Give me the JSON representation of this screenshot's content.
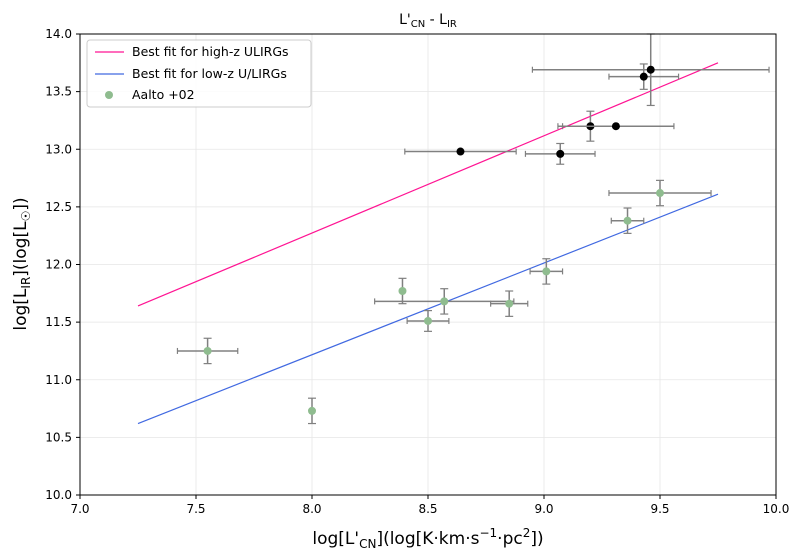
{
  "chart_data": {
    "type": "scatter",
    "title": "L'CN - LIR",
    "title_main": "L'",
    "title_sub1": "CN",
    "title_mid": " - L",
    "title_sub2": "IR",
    "xlabel": "log[L'CN](log[K·km·s−1·pc2])",
    "ylabel": "log[LIR](log[L☉])",
    "xlim": [
      7.0,
      10.0
    ],
    "ylim": [
      10.0,
      14.0
    ],
    "xticks": [
      "7.0",
      "7.5",
      "8.0",
      "8.5",
      "9.0",
      "9.5",
      "10.0"
    ],
    "yticks": [
      "10.0",
      "10.5",
      "11.0",
      "11.5",
      "12.0",
      "12.5",
      "13.0",
      "13.5",
      "14.0"
    ],
    "grid": true,
    "legend_position": "top-left",
    "colors": {
      "high_z_line": "#ff1493",
      "low_z_line": "#4169e1",
      "aalto_points": "#8fbc8f",
      "high_z_points": "#000000",
      "error_bars": "#808080"
    },
    "series": [
      {
        "name": "Best fit for high-z ULIRGs",
        "kind": "line",
        "x": [
          7.25,
          9.75
        ],
        "y": [
          11.64,
          13.75
        ]
      },
      {
        "name": "Best fit for low-z U/LIRGs",
        "kind": "line",
        "x": [
          7.25,
          9.75
        ],
        "y": [
          10.62,
          12.61
        ]
      },
      {
        "name": "Aalto +02",
        "kind": "points",
        "points": [
          {
            "x": 7.55,
            "y": 11.25,
            "xerr": 0.13,
            "yerr": 0.11
          },
          {
            "x": 8.0,
            "y": 10.73,
            "xerr": 0.0,
            "yerr": 0.11
          },
          {
            "x": 8.39,
            "y": 11.77,
            "xerr": 0.0,
            "yerr": 0.11
          },
          {
            "x": 8.57,
            "y": 11.68,
            "xerr": 0.3,
            "yerr": 0.11
          },
          {
            "x": 8.5,
            "y": 11.51,
            "xerr": 0.09,
            "yerr": 0.09
          },
          {
            "x": 8.85,
            "y": 11.66,
            "xerr": 0.08,
            "yerr": 0.11
          },
          {
            "x": 9.01,
            "y": 11.94,
            "xerr": 0.07,
            "yerr": 0.11
          },
          {
            "x": 9.36,
            "y": 12.38,
            "xerr": 0.07,
            "yerr": 0.11
          },
          {
            "x": 9.5,
            "y": 12.62,
            "xerr": 0.22,
            "yerr": 0.11
          }
        ]
      },
      {
        "name": "",
        "kind": "points",
        "points": [
          {
            "x": 8.64,
            "y": 12.98,
            "xerr": 0.24,
            "yerr": 0.0
          },
          {
            "x": 9.07,
            "y": 12.96,
            "xerr": 0.15,
            "yerr": 0.09
          },
          {
            "x": 9.2,
            "y": 13.2,
            "xerr": 0.12,
            "yerr": 0.13
          },
          {
            "x": 9.31,
            "y": 13.2,
            "xerr": 0.25,
            "yerr": 0.0
          },
          {
            "x": 9.43,
            "y": 13.63,
            "xerr": 0.15,
            "yerr": 0.11
          },
          {
            "x": 9.46,
            "y": 13.69,
            "xerr": 0.51,
            "yerr": 0.31
          }
        ]
      }
    ]
  },
  "legend": {
    "high_z": "Best fit for high-z ULIRGs",
    "low_z": "Best fit for low-z U/LIRGs",
    "aalto": "Aalto +02"
  },
  "axis_text": {
    "x_pre": "log[L'",
    "x_sub": "CN",
    "x_mid": "](log[K·km·s",
    "x_sup1": "−1",
    "x_mid2": "·pc",
    "x_sup2": "2",
    "x_post": "])",
    "y_pre": "log[L",
    "y_sub": "IR",
    "y_mid": "](log[L",
    "y_sub2": "☉",
    "y_post": "])"
  }
}
